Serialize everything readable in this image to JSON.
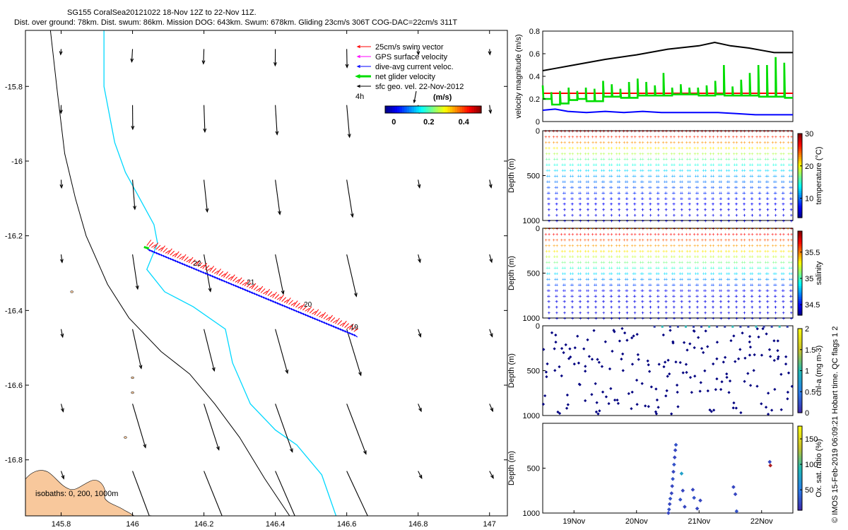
{
  "title_line1": "SG155 CoralSea20121022 18-Nov 12Z to 22-Nov 11Z.",
  "title_line2": "Dist. over ground: 78km. Dist. swum: 86km. Mission DOG: 643km. Swum: 678km. Gliding 23cm/s 306T COG-DAC=22cm/s 311T",
  "credit": "© IMOS 15-Feb-2019 06:09:21 Hobart time. QC flags 1 2",
  "colors": {
    "swim": "#ff0000",
    "gps": "#ff00ff",
    "dac": "#0000ff",
    "net": "#00dd00",
    "sfc": "#000000",
    "coast": "#000000",
    "isobath200": "#00d8ff",
    "land": "#f8c89c",
    "speed": "#000000"
  },
  "chart_data": [
    {
      "type": "map",
      "name": "track_map",
      "xlim": [
        145.7,
        147.05
      ],
      "ylim": [
        -16.95,
        -15.65
      ],
      "x_ticks": [
        "145.8",
        "146",
        "146.2",
        "146.4",
        "146.6",
        "146.8",
        "147"
      ],
      "x_tick_values": [
        145.8,
        146.0,
        146.2,
        146.4,
        146.6,
        146.8,
        147.0
      ],
      "y_ticks": [
        "-15.8",
        "-16",
        "-16.2",
        "-16.4",
        "-16.6",
        "-16.8"
      ],
      "y_tick_values": [
        -15.8,
        -16.0,
        -16.2,
        -16.4,
        -16.6,
        -16.8
      ],
      "legend": [
        {
          "label": "25cm/s swim vector",
          "color": "#ff0000",
          "width": 1
        },
        {
          "label": "GPS surface velocity",
          "color": "#ff00ff",
          "width": 1
        },
        {
          "label": "dive-avg current veloc.",
          "color": "#0000ff",
          "width": 1
        },
        {
          "label": "net glider velocity",
          "color": "#00dd00",
          "width": 3
        },
        {
          "label": "sfc geo. vel. 22-Nov-2012",
          "color": "#000000",
          "width": 1
        }
      ],
      "scale_label": "4h",
      "colorbar": {
        "label": "(m/s)",
        "ticks": [
          "0",
          "0.2",
          "0.4"
        ],
        "tick_values": [
          0,
          0.2,
          0.4
        ],
        "range": [
          -0.05,
          0.5
        ]
      },
      "isobaths_label": "isobaths: 0, 200, 1000m",
      "track": {
        "start": [
          146.04,
          -16.23
        ],
        "end": [
          146.62,
          -16.46
        ]
      },
      "day_labels": [
        {
          "text": "22",
          "lon": 146.17,
          "lat": -16.28
        },
        {
          "text": "21",
          "lon": 146.32,
          "lat": -16.33
        },
        {
          "text": "20",
          "lon": 146.48,
          "lat": -16.39
        },
        {
          "text": "19",
          "lon": 146.61,
          "lat": -16.45
        }
      ]
    },
    {
      "type": "line",
      "name": "velocity_magnitude",
      "ylabel": "velocity magnitude (m/s)",
      "ylim": [
        0,
        0.8
      ],
      "y_ticks": [
        "0",
        "0.2",
        "0.4",
        "0.6",
        "0.8"
      ],
      "y_tick_values": [
        0,
        0.2,
        0.4,
        0.6,
        0.8
      ],
      "xlim": [
        18.5,
        22.5
      ],
      "series": [
        {
          "color": "#000000",
          "x": [
            18.5,
            18.7,
            19.0,
            19.5,
            20.0,
            20.5,
            21.0,
            21.25,
            21.5,
            21.8,
            22.0,
            22.2,
            22.5
          ],
          "values": [
            0.45,
            0.47,
            0.5,
            0.55,
            0.59,
            0.64,
            0.67,
            0.7,
            0.67,
            0.65,
            0.63,
            0.61,
            0.61
          ]
        },
        {
          "color": "#ff0000",
          "x": [
            18.5,
            22.5
          ],
          "values": [
            0.25,
            0.25
          ]
        },
        {
          "color": "#0000ff",
          "x": [
            18.5,
            18.7,
            18.9,
            19.2,
            19.5,
            19.8,
            20.1,
            20.4,
            20.7,
            21.0,
            21.3,
            21.6,
            21.9,
            22.2,
            22.5
          ],
          "values": [
            0.1,
            0.11,
            0.09,
            0.08,
            0.09,
            0.08,
            0.09,
            0.08,
            0.08,
            0.08,
            0.08,
            0.07,
            0.06,
            0.06,
            0.06
          ]
        }
      ],
      "net_series": {
        "color": "#00dd00",
        "base": [
          0.2,
          0.15,
          0.16,
          0.19,
          0.2,
          0.18,
          0.18,
          0.22,
          0.22,
          0.21,
          0.21,
          0.23,
          0.23,
          0.23,
          0.23,
          0.24,
          0.24,
          0.24,
          0.23,
          0.23,
          0.24,
          0.23,
          0.23,
          0.23,
          0.23,
          0.22,
          0.22,
          0.22,
          0.21
        ],
        "peaks": [
          0.32,
          0.26,
          0.27,
          0.3,
          0.27,
          0.3,
          0.29,
          0.36,
          0.33,
          0.29,
          0.35,
          0.38,
          0.35,
          0.32,
          0.43,
          0.3,
          0.33,
          0.3,
          0.3,
          0.32,
          0.36,
          0.5,
          0.31,
          0.37,
          0.43,
          0.5,
          0.5,
          0.57,
          0.52
        ]
      }
    },
    {
      "type": "scatter",
      "name": "temperature_section",
      "ylabel": "Depth (m)",
      "ylim": [
        1000,
        0
      ],
      "y_ticks": [
        "0",
        "500",
        "1000"
      ],
      "y_tick_values": [
        0,
        500,
        1000
      ],
      "xlim": [
        18.5,
        22.5
      ],
      "dives": 32,
      "max_depth": 1000,
      "surface_value": 29,
      "deep_value": 5,
      "colorbar": {
        "label": "temperature (°C)",
        "ticks": [
          "30",
          "20",
          "10"
        ],
        "tick_values": [
          30,
          20,
          10
        ],
        "range": [
          4,
          30
        ]
      }
    },
    {
      "type": "scatter",
      "name": "salinity_section",
      "ylabel": "Depth (m)",
      "ylim": [
        1000,
        0
      ],
      "y_ticks": [
        "0",
        "500",
        "1000"
      ],
      "y_tick_values": [
        0,
        500,
        1000
      ],
      "xlim": [
        18.5,
        22.5
      ],
      "dives": 32,
      "max_depth": 1000,
      "surface_value": 35.5,
      "deep_value": 34.4,
      "colorbar": {
        "label": "salinity",
        "ticks": [
          "35.5",
          "35",
          "34.5"
        ],
        "tick_values": [
          35.5,
          35,
          34.5
        ],
        "range": [
          34.3,
          35.9
        ]
      }
    },
    {
      "type": "scatter",
      "name": "chla_section",
      "ylabel": "Depth (m)",
      "ylim": [
        1000,
        0
      ],
      "y_ticks": [
        "0",
        "500",
        "1000"
      ],
      "y_tick_values": [
        0,
        500,
        1000
      ],
      "xlim": [
        18.5,
        22.5
      ],
      "dives": 32,
      "background_value": 0.05,
      "colorbar": {
        "label": "chl-a (mg m-3)",
        "ticks": [
          "2",
          "1.5",
          "1",
          "0.5",
          "0"
        ],
        "tick_values": [
          2,
          1.5,
          1,
          0.5,
          0
        ],
        "range": [
          0,
          2
        ]
      }
    },
    {
      "type": "scatter",
      "name": "oxygen_section",
      "ylabel": "Depth (m)",
      "ylim": [
        1000,
        0
      ],
      "y_ticks": [
        "500",
        "1000"
      ],
      "y_tick_values": [
        500,
        1000
      ],
      "xlim": [
        18.5,
        22.5
      ],
      "x_ticks": [
        "19Nov",
        "20Nov",
        "21Nov",
        "22Nov"
      ],
      "x_tick_values": [
        19,
        20,
        21,
        22
      ],
      "points": [
        {
          "x": 20.52,
          "depth": 960,
          "v": 30
        },
        {
          "x": 20.53,
          "depth": 900,
          "v": 25
        },
        {
          "x": 20.54,
          "depth": 840,
          "v": 30
        },
        {
          "x": 20.56,
          "depth": 780,
          "v": 25
        },
        {
          "x": 20.57,
          "depth": 700,
          "v": 25
        },
        {
          "x": 20.58,
          "depth": 620,
          "v": 30
        },
        {
          "x": 20.59,
          "depth": 540,
          "v": 25
        },
        {
          "x": 20.6,
          "depth": 460,
          "v": 30
        },
        {
          "x": 20.61,
          "depth": 380,
          "v": 25
        },
        {
          "x": 20.62,
          "depth": 300,
          "v": 25
        },
        {
          "x": 20.63,
          "depth": 240,
          "v": 30
        },
        {
          "x": 20.51,
          "depth": 1000,
          "v": 25
        },
        {
          "x": 20.72,
          "depth": 560,
          "v": 75
        },
        {
          "x": 20.74,
          "depth": 750,
          "v": 25
        },
        {
          "x": 20.7,
          "depth": 850,
          "v": 30
        },
        {
          "x": 20.77,
          "depth": 930,
          "v": 25
        },
        {
          "x": 20.9,
          "depth": 740,
          "v": 25
        },
        {
          "x": 20.92,
          "depth": 830,
          "v": 30
        },
        {
          "x": 20.97,
          "depth": 950,
          "v": 25
        },
        {
          "x": 21.02,
          "depth": 860,
          "v": 25
        },
        {
          "x": 21.55,
          "depth": 710,
          "v": 25
        },
        {
          "x": 21.58,
          "depth": 790,
          "v": 25
        },
        {
          "x": 21.6,
          "depth": 980,
          "v": 30
        },
        {
          "x": 22.13,
          "depth": 430,
          "v": 25
        },
        {
          "x": 22.14,
          "depth": 470,
          "v": 170
        }
      ],
      "colorbar": {
        "label": "Ox. sat. ratio (%)",
        "ticks": [
          "150",
          "100",
          "50"
        ],
        "tick_values": [
          150,
          100,
          50
        ],
        "range": [
          10,
          175
        ]
      }
    }
  ]
}
